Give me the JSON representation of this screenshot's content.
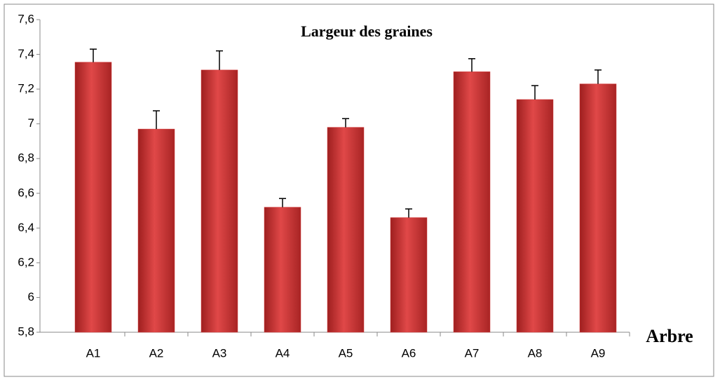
{
  "chart_data": {
    "type": "bar",
    "title": "Largeur des graines",
    "x_label": "Arbre",
    "categories": [
      "A1",
      "A2",
      "A3",
      "A4",
      "A5",
      "A6",
      "A7",
      "A8",
      "A9"
    ],
    "values": [
      7.355,
      6.97,
      7.31,
      6.52,
      6.98,
      6.46,
      7.3,
      7.14,
      7.23
    ],
    "errors": [
      0.075,
      0.105,
      0.11,
      0.05,
      0.05,
      0.05,
      0.075,
      0.08,
      0.08
    ],
    "color": "#d63a3a",
    "ylim": [
      5.8,
      7.6
    ],
    "yticks": [
      {
        "value": 5.8,
        "label": "5,8"
      },
      6,
      {
        "value": 6.2,
        "label": "6,2"
      },
      {
        "value": 6.4,
        "label": "6,4"
      },
      {
        "value": 6.6,
        "label": "6,6"
      },
      {
        "value": 6.8,
        "label": "6,8"
      },
      7,
      {
        "value": 7.2,
        "label": "7,2"
      },
      {
        "value": 7.4,
        "label": "7,4"
      },
      {
        "value": 7.6,
        "label": "7,6"
      }
    ]
  }
}
